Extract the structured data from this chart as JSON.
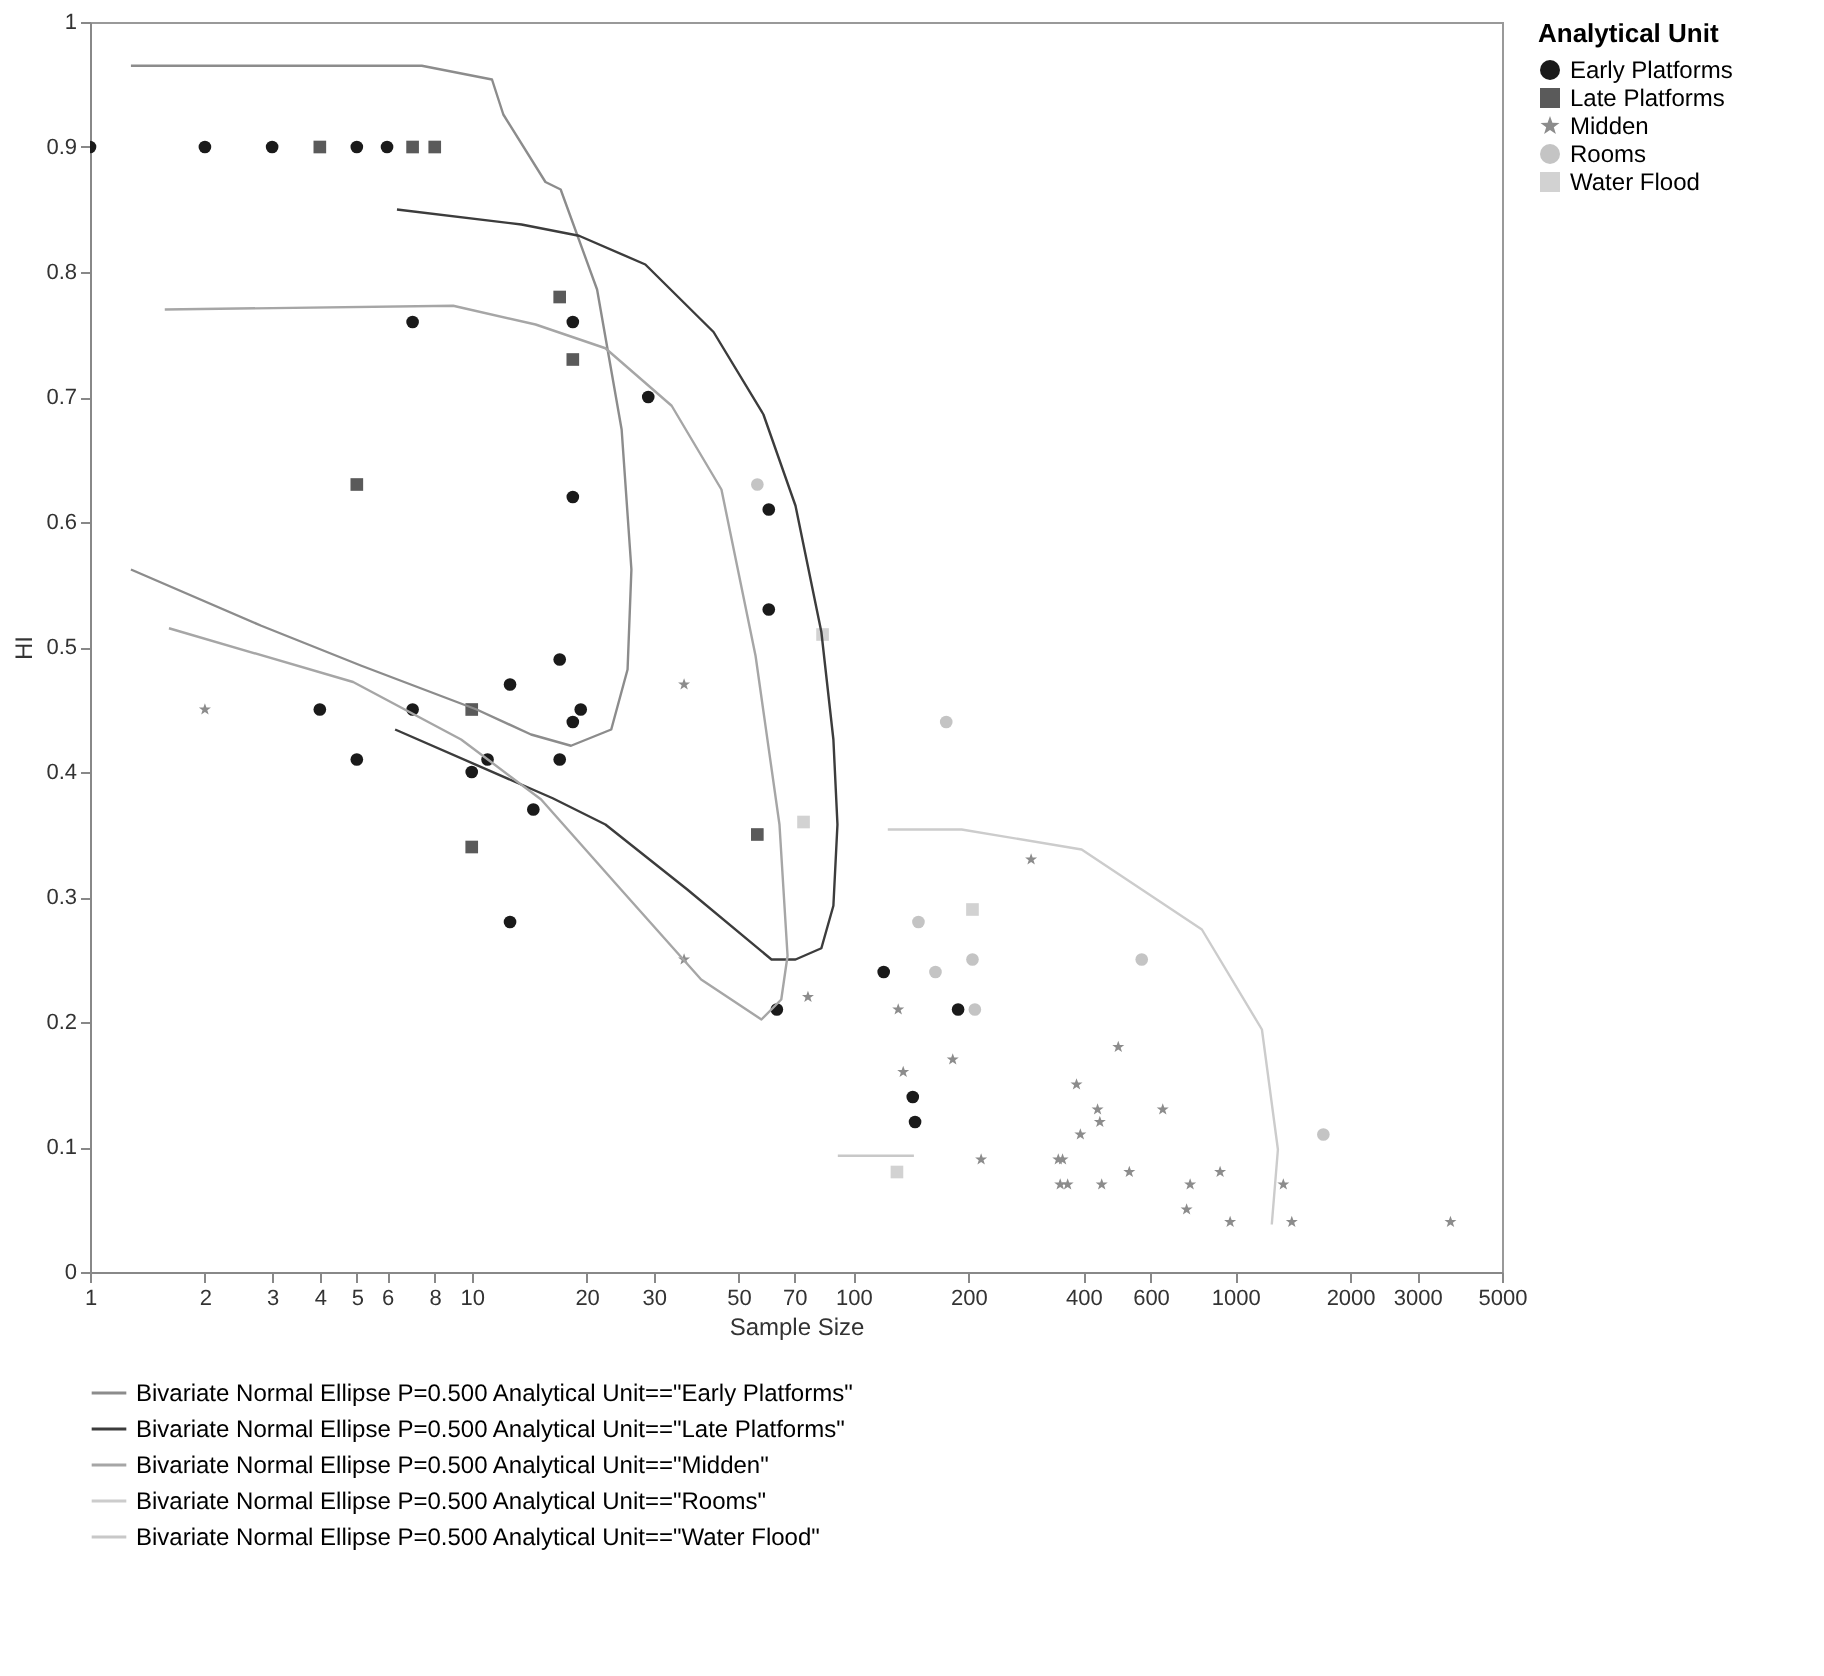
{
  "chart_data": {
    "type": "scatter",
    "xlabel": "Sample Size",
    "ylabel": "HI",
    "legend_title": "Analytical Unit",
    "legend": "right",
    "log": "x",
    "xlim": [
      1,
      5000
    ],
    "xticks": [
      1,
      2,
      3,
      4,
      5,
      6,
      8,
      10,
      20,
      30,
      50,
      70,
      100,
      200,
      400,
      600,
      1000,
      2000,
      3000,
      5000
    ],
    "ylim": [
      0,
      1
    ],
    "yticks": [
      0,
      0.1,
      0.2,
      0.3,
      0.4,
      0.5,
      0.6,
      0.7,
      0.8,
      0.9,
      1
    ],
    "series": [
      {
        "name": "Early Platforms",
        "color": "#1a1a1a",
        "marker": "circle",
        "x": [
          1,
          2,
          3,
          5,
          6,
          7,
          4,
          5,
          7,
          10,
          11,
          12.6,
          12.6,
          14.5,
          17,
          17,
          18.4,
          29,
          18.4,
          19.3,
          18.4,
          60,
          60,
          63,
          120,
          188,
          143,
          145
        ],
        "values": [
          0.9,
          0.9,
          0.9,
          0.9,
          0.9,
          0.76,
          0.45,
          0.41,
          0.45,
          0.4,
          0.41,
          0.47,
          0.28,
          0.37,
          0.49,
          0.41,
          0.76,
          0.7,
          0.62,
          0.45,
          0.44,
          0.61,
          0.53,
          0.21,
          0.24,
          0.21,
          0.14,
          0.12
        ]
      },
      {
        "name": "Late Platforms",
        "color": "#5a5a5a",
        "marker": "square",
        "x": [
          4,
          7,
          8,
          5,
          10,
          17,
          18.4,
          56,
          10
        ],
        "values": [
          0.9,
          0.9,
          0.9,
          0.63,
          0.34,
          0.78,
          0.73,
          0.35,
          0.45
        ]
      },
      {
        "name": "Midden",
        "color": "#8c8c8c",
        "marker": "star",
        "x": [
          2,
          36,
          36,
          76,
          131,
          135,
          182,
          216,
          292,
          344,
          348,
          384,
          494,
          436,
          442,
          393,
          353,
          364,
          447,
          528,
          646,
          762,
          746,
          913,
          970,
          1337,
          1407,
          3664
        ],
        "values": [
          0.45,
          0.47,
          0.25,
          0.22,
          0.21,
          0.16,
          0.17,
          0.09,
          0.33,
          0.09,
          0.07,
          0.15,
          0.18,
          0.13,
          0.12,
          0.11,
          0.09,
          0.07,
          0.07,
          0.08,
          0.13,
          0.07,
          0.05,
          0.08,
          0.04,
          0.07,
          0.04,
          0.04
        ]
      },
      {
        "name": "Rooms",
        "color": "#c4c4c4",
        "marker": "circle",
        "x": [
          56,
          175,
          569,
          1702,
          208,
          205,
          164,
          148
        ],
        "values": [
          0.63,
          0.44,
          0.25,
          0.11,
          0.21,
          0.25,
          0.24,
          0.28
        ]
      },
      {
        "name": "Water Flood",
        "color": "#d2d2d2",
        "marker": "square",
        "x": [
          130,
          83,
          74,
          205
        ],
        "values": [
          0.08,
          0.51,
          0.36,
          0.29
        ]
      },
      {
        "name": "Bivariate Normal Ellipse P=0.500 Analytical Unit==\"Early Platforms\"",
        "type": "line",
        "color": "#8c8c8c",
        "x": [
          1.28,
          7.4,
          11.3,
          12.1,
          15.6,
          17.1,
          21.3,
          24.7,
          26.2,
          25.6,
          23.2,
          18.2,
          14.3,
          10.3,
          5.14,
          2.81,
          1.28
        ],
        "values": [
          0.965,
          0.965,
          0.954,
          0.926,
          0.872,
          0.866,
          0.786,
          0.674,
          0.562,
          0.482,
          0.434,
          0.421,
          0.43,
          0.45,
          0.485,
          0.517,
          0.562
        ]
      },
      {
        "name": "Bivariate Normal Ellipse P=0.500 Analytical Unit==\"Late Platforms\"",
        "type": "line",
        "color": "#3c3c3c",
        "x": [
          6.37,
          13.5,
          19.1,
          28.5,
          43,
          58.1,
          70.5,
          82.4,
          88.6,
          90.8,
          88.6,
          82.4,
          70.5,
          61,
          36.7,
          22.4,
          16.3,
          6.3
        ],
        "values": [
          0.85,
          0.838,
          0.829,
          0.806,
          0.752,
          0.686,
          0.613,
          0.512,
          0.426,
          0.358,
          0.293,
          0.259,
          0.25,
          0.25,
          0.306,
          0.358,
          0.379,
          0.434
        ]
      },
      {
        "name": "Bivariate Normal Ellipse P=0.500 Analytical Unit==\"Midden\"",
        "type": "line",
        "color": "#a6a6a6",
        "x": [
          1.57,
          8.94,
          14.7,
          22.4,
          33.4,
          45.1,
          55.4,
          64,
          67.2,
          64.7,
          57.4,
          39.9,
          24.6,
          15.2,
          9.38,
          4.89,
          1.61
        ],
        "values": [
          0.77,
          0.773,
          0.758,
          0.739,
          0.693,
          0.626,
          0.493,
          0.358,
          0.253,
          0.218,
          0.202,
          0.234,
          0.306,
          0.378,
          0.426,
          0.472,
          0.515
        ]
      },
      {
        "name": "Bivariate Normal Ellipse P=0.500 Analytical Unit==\"Rooms\"",
        "type": "line",
        "color": "#cccccc",
        "x": [
          123,
          192,
          396,
          818,
          1175,
          1294,
          1247
        ],
        "values": [
          0.354,
          0.354,
          0.338,
          0.274,
          0.194,
          0.098,
          0.038
        ]
      },
      {
        "name": "Bivariate Normal Ellipse P=0.500 Analytical Unit==\"Water Flood\"",
        "type": "line",
        "color": "#c8c8c8",
        "x": [
          91,
          144
        ],
        "values": [
          0.093,
          0.093
        ]
      }
    ]
  }
}
